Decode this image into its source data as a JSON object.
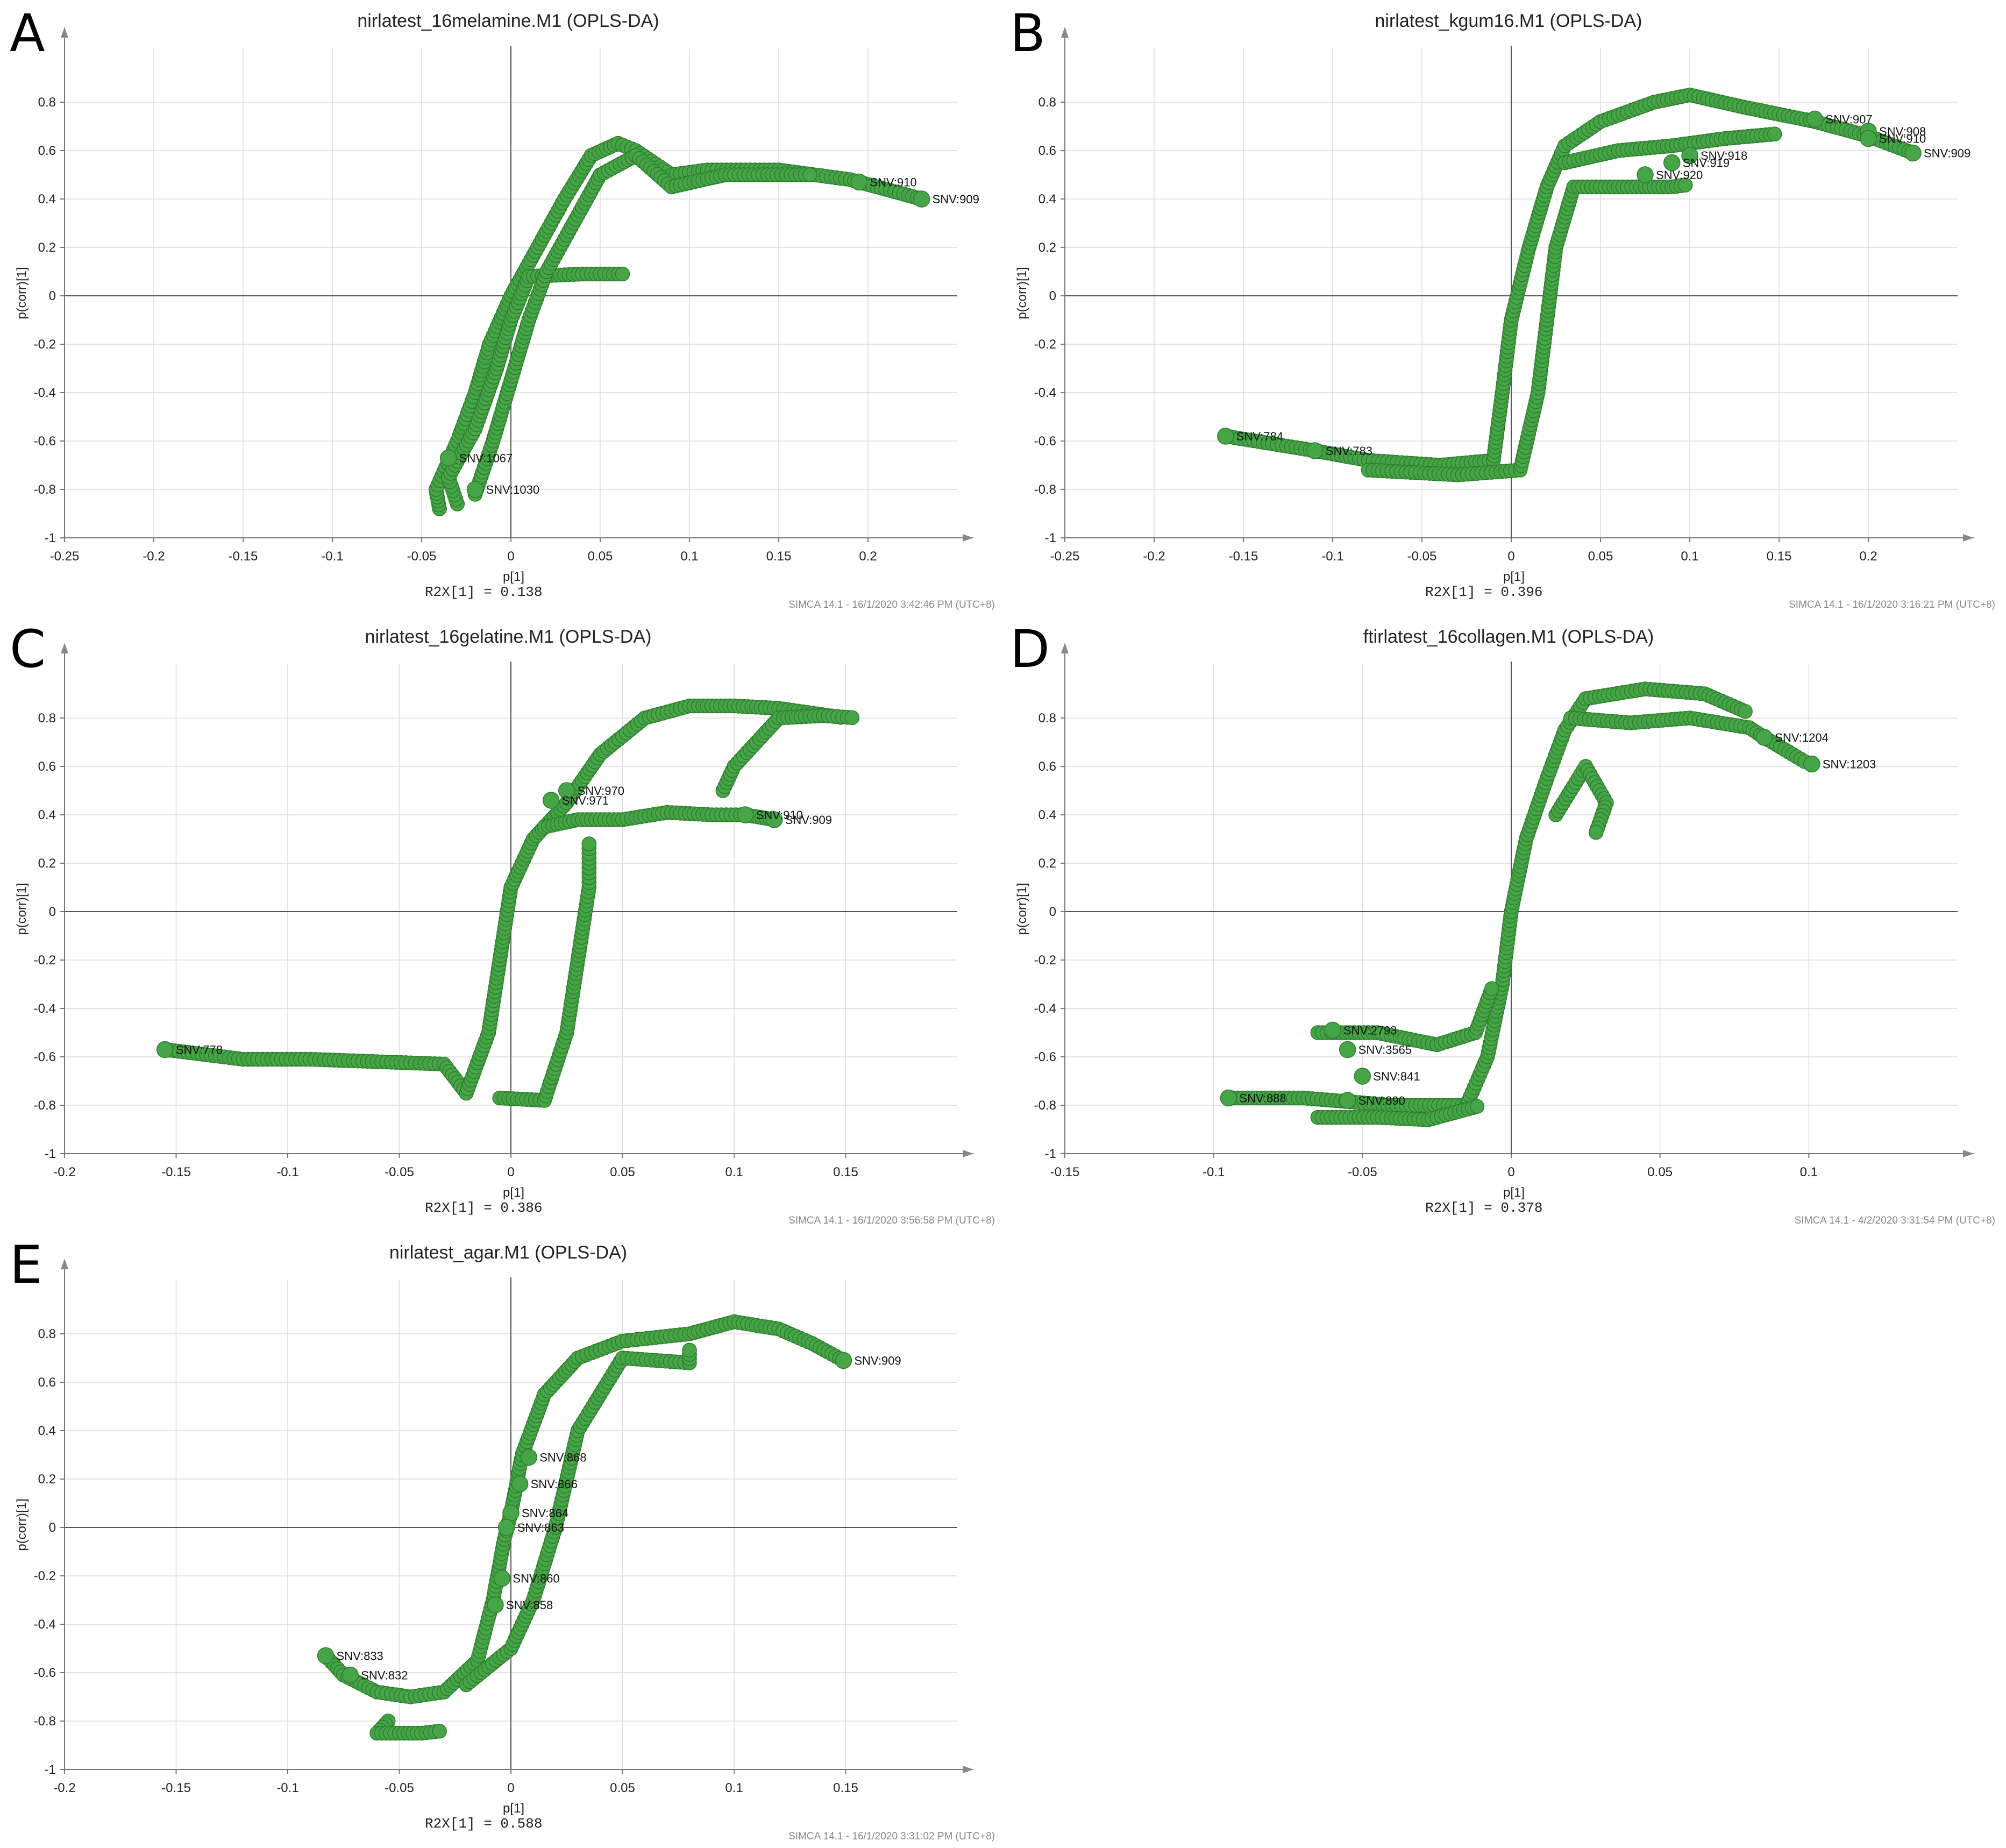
{
  "chart_data": [
    {
      "panel": "A",
      "type": "scatter",
      "title": "nirlatest_16melamine.M1 (OPLS-DA)",
      "xlabel": "p[1]",
      "ylabel": "p(corr)[1]",
      "xlim": [
        -0.25,
        0.25
      ],
      "ylim": [
        -1,
        1
      ],
      "xticks": [
        "-0.25",
        "-0.2",
        "-0.15",
        "-0.1",
        "-0.05",
        "0",
        "0.05",
        "0.1",
        "0.15",
        "0.2"
      ],
      "yticks": [
        "-1",
        "-0.8",
        "-0.6",
        "-0.4",
        "-0.2",
        "0",
        "0.2",
        "0.4",
        "0.6",
        "0.8"
      ],
      "r2x": "R2X[1] = 0.138",
      "footer": "SIMCA 14.1 - 16/1/2020 3:42:46 PM (UTC+8)",
      "curves": [
        [
          [
            -0.04,
            -0.88
          ],
          [
            -0.042,
            -0.8
          ],
          [
            -0.03,
            -0.6
          ],
          [
            -0.02,
            -0.4
          ],
          [
            -0.012,
            -0.2
          ],
          [
            0.0,
            0.0
          ],
          [
            0.015,
            0.2
          ],
          [
            0.03,
            0.4
          ],
          [
            0.045,
            0.58
          ],
          [
            0.06,
            0.63
          ],
          [
            0.07,
            0.6
          ],
          [
            0.09,
            0.5
          ],
          [
            0.11,
            0.52
          ],
          [
            0.15,
            0.52
          ],
          [
            0.19,
            0.48
          ],
          [
            0.23,
            0.4
          ]
        ],
        [
          [
            -0.03,
            -0.86
          ],
          [
            -0.035,
            -0.75
          ],
          [
            -0.02,
            -0.55
          ],
          [
            -0.008,
            -0.3
          ],
          [
            0.0,
            -0.1
          ],
          [
            0.01,
            0.08
          ],
          [
            0.04,
            0.09
          ],
          [
            0.065,
            0.09
          ]
        ],
        [
          [
            -0.02,
            -0.82
          ],
          [
            -0.01,
            -0.6
          ],
          [
            0.0,
            -0.35
          ],
          [
            0.01,
            -0.1
          ],
          [
            0.02,
            0.1
          ],
          [
            0.035,
            0.3
          ],
          [
            0.05,
            0.5
          ],
          [
            0.07,
            0.58
          ],
          [
            0.09,
            0.45
          ],
          [
            0.12,
            0.5
          ],
          [
            0.17,
            0.5
          ]
        ]
      ],
      "points": [
        {
          "label": "SNV:909",
          "x": 0.23,
          "y": 0.4
        },
        {
          "label": "SNV:910",
          "x": 0.195,
          "y": 0.47
        },
        {
          "label": "SNV:1030",
          "x": -0.02,
          "y": -0.8
        },
        {
          "label": "SNV:1067",
          "x": -0.035,
          "y": -0.67
        }
      ]
    },
    {
      "panel": "B",
      "type": "scatter",
      "title": "nirlatest_kgum16.M1 (OPLS-DA)",
      "xlabel": "p[1]",
      "ylabel": "p(corr)[1]",
      "xlim": [
        -0.25,
        0.25
      ],
      "ylim": [
        -1,
        1
      ],
      "xticks": [
        "-0.25",
        "-0.2",
        "-0.15",
        "-0.1",
        "-0.05",
        "0",
        "0.05",
        "0.1",
        "0.15",
        "0.2"
      ],
      "yticks": [
        "-1",
        "-0.8",
        "-0.6",
        "-0.4",
        "-0.2",
        "0",
        "0.2",
        "0.4",
        "0.6",
        "0.8"
      ],
      "r2x": "R2X[1] = 0.396",
      "footer": "SIMCA 14.1 - 16/1/2020 3:16:21 PM (UTC+8)",
      "curves": [
        [
          [
            -0.16,
            -0.58
          ],
          [
            -0.11,
            -0.64
          ],
          [
            -0.08,
            -0.68
          ],
          [
            -0.04,
            -0.7
          ],
          [
            -0.01,
            -0.68
          ],
          [
            -0.005,
            -0.4
          ],
          [
            0.0,
            -0.1
          ],
          [
            0.01,
            0.2
          ],
          [
            0.02,
            0.45
          ],
          [
            0.03,
            0.62
          ],
          [
            0.05,
            0.72
          ],
          [
            0.08,
            0.8
          ],
          [
            0.1,
            0.83
          ],
          [
            0.13,
            0.78
          ],
          [
            0.17,
            0.72
          ],
          [
            0.2,
            0.66
          ],
          [
            0.225,
            0.59
          ]
        ],
        [
          [
            -0.08,
            -0.72
          ],
          [
            -0.03,
            -0.74
          ],
          [
            0.005,
            -0.72
          ],
          [
            0.015,
            -0.4
          ],
          [
            0.02,
            -0.1
          ],
          [
            0.025,
            0.2
          ],
          [
            0.035,
            0.45
          ],
          [
            0.06,
            0.45
          ],
          [
            0.09,
            0.45
          ],
          [
            0.1,
            0.46
          ]
        ],
        [
          [
            0.03,
            0.55
          ],
          [
            0.06,
            0.6
          ],
          [
            0.09,
            0.62
          ],
          [
            0.12,
            0.65
          ],
          [
            0.15,
            0.67
          ]
        ]
      ],
      "points": [
        {
          "label": "SNV:784",
          "x": -0.16,
          "y": -0.58
        },
        {
          "label": "SNV:783",
          "x": -0.11,
          "y": -0.64
        },
        {
          "label": "SNV:907",
          "x": 0.17,
          "y": 0.73
        },
        {
          "label": "SNV:908",
          "x": 0.2,
          "y": 0.68
        },
        {
          "label": "SNV:910",
          "x": 0.2,
          "y": 0.65
        },
        {
          "label": "SNV:909",
          "x": 0.225,
          "y": 0.59
        },
        {
          "label": "SNV:918",
          "x": 0.1,
          "y": 0.58
        },
        {
          "label": "SNV:919",
          "x": 0.09,
          "y": 0.55
        },
        {
          "label": "SNV:920",
          "x": 0.075,
          "y": 0.5
        }
      ]
    },
    {
      "panel": "C",
      "type": "scatter",
      "title": "nirlatest_16gelatine.M1 (OPLS-DA)",
      "xlabel": "p[1]",
      "ylabel": "p(corr)[1]",
      "xlim": [
        -0.2,
        0.2
      ],
      "ylim": [
        -1,
        1
      ],
      "xticks": [
        "-0.2",
        "-0.15",
        "-0.1",
        "-0.05",
        "0",
        "0.05",
        "0.1",
        "0.15"
      ],
      "yticks": [
        "-1",
        "-0.8",
        "-0.6",
        "-0.4",
        "-0.2",
        "0",
        "0.2",
        "0.4",
        "0.6",
        "0.8"
      ],
      "r2x": "R2X[1] = 0.386",
      "footer": "SIMCA 14.1 - 16/1/2020 3:56:58 PM (UTC+8)",
      "curves": [
        [
          [
            -0.155,
            -0.57
          ],
          [
            -0.12,
            -0.61
          ],
          [
            -0.09,
            -0.61
          ],
          [
            -0.06,
            -0.62
          ],
          [
            -0.03,
            -0.63
          ],
          [
            -0.02,
            -0.75
          ],
          [
            -0.01,
            -0.5
          ],
          [
            -0.005,
            -0.2
          ],
          [
            0.0,
            0.1
          ],
          [
            0.01,
            0.3
          ],
          [
            0.025,
            0.45
          ],
          [
            0.04,
            0.65
          ],
          [
            0.06,
            0.8
          ],
          [
            0.08,
            0.85
          ],
          [
            0.1,
            0.85
          ],
          [
            0.12,
            0.84
          ],
          [
            0.15,
            0.8
          ]
        ],
        [
          [
            0.015,
            0.35
          ],
          [
            0.03,
            0.38
          ],
          [
            0.05,
            0.38
          ],
          [
            0.07,
            0.41
          ],
          [
            0.09,
            0.4
          ],
          [
            0.105,
            0.4
          ],
          [
            0.118,
            0.38
          ]
        ],
        [
          [
            0.095,
            0.5
          ],
          [
            0.1,
            0.6
          ],
          [
            0.11,
            0.7
          ],
          [
            0.12,
            0.8
          ],
          [
            0.14,
            0.81
          ],
          [
            0.155,
            0.8
          ]
        ],
        [
          [
            -0.005,
            -0.77
          ],
          [
            0.015,
            -0.78
          ],
          [
            0.025,
            -0.5
          ],
          [
            0.03,
            -0.2
          ],
          [
            0.035,
            0.1
          ],
          [
            0.035,
            0.3
          ]
        ]
      ],
      "points": [
        {
          "label": "SNV:778",
          "x": -0.155,
          "y": -0.57
        },
        {
          "label": "SNV:970",
          "x": 0.025,
          "y": 0.5
        },
        {
          "label": "SNV:971",
          "x": 0.018,
          "y": 0.46
        },
        {
          "label": "SNV:909",
          "x": 0.118,
          "y": 0.38
        },
        {
          "label": "SNV:910",
          "x": 0.105,
          "y": 0.4
        }
      ]
    },
    {
      "panel": "D",
      "type": "scatter",
      "title": "ftirlatest_16collagen.M1 (OPLS-DA)",
      "xlabel": "p[1]",
      "ylabel": "p(corr)[1]",
      "xlim": [
        -0.15,
        0.15
      ],
      "ylim": [
        -1,
        1
      ],
      "xticks": [
        "-0.15",
        "-0.1",
        "-0.05",
        "0",
        "0.05",
        "0.1"
      ],
      "yticks": [
        "-1",
        "-0.8",
        "-0.6",
        "-0.4",
        "-0.2",
        "0",
        "0.2",
        "0.4",
        "0.6",
        "0.8"
      ],
      "r2x": "R2X[1] = 0.378",
      "footer": "SIMCA 14.1 - 4/2/2020 3:31:54 PM (UTC+8)",
      "curves": [
        [
          [
            -0.095,
            -0.77
          ],
          [
            -0.07,
            -0.77
          ],
          [
            -0.04,
            -0.8
          ],
          [
            -0.015,
            -0.8
          ],
          [
            -0.008,
            -0.6
          ],
          [
            -0.003,
            -0.3
          ],
          [
            0.0,
            0.0
          ],
          [
            0.005,
            0.3
          ],
          [
            0.012,
            0.55
          ],
          [
            0.018,
            0.75
          ],
          [
            0.025,
            0.88
          ],
          [
            0.045,
            0.92
          ],
          [
            0.065,
            0.9
          ],
          [
            0.08,
            0.82
          ]
        ],
        [
          [
            -0.065,
            -0.5
          ],
          [
            -0.045,
            -0.5
          ],
          [
            -0.025,
            -0.55
          ],
          [
            -0.012,
            -0.5
          ],
          [
            -0.006,
            -0.3
          ]
        ],
        [
          [
            0.02,
            0.8
          ],
          [
            0.04,
            0.78
          ],
          [
            0.06,
            0.8
          ],
          [
            0.08,
            0.76
          ],
          [
            0.085,
            0.72
          ],
          [
            0.1,
            0.61
          ]
        ],
        [
          [
            0.015,
            0.4
          ],
          [
            0.025,
            0.6
          ],
          [
            0.032,
            0.45
          ],
          [
            0.028,
            0.31
          ]
        ],
        [
          [
            -0.065,
            -0.85
          ],
          [
            -0.045,
            -0.85
          ],
          [
            -0.028,
            -0.86
          ],
          [
            -0.01,
            -0.8
          ]
        ]
      ],
      "points": [
        {
          "label": "SNV:1203",
          "x": 0.101,
          "y": 0.61
        },
        {
          "label": "SNV:1204",
          "x": 0.085,
          "y": 0.72
        },
        {
          "label": "SNV:888",
          "x": -0.095,
          "y": -0.77
        },
        {
          "label": "SNV:2793",
          "x": -0.06,
          "y": -0.49
        },
        {
          "label": "SNV:3565",
          "x": -0.055,
          "y": -0.57
        },
        {
          "label": "SNV:841",
          "x": -0.05,
          "y": -0.68
        },
        {
          "label": "SNV:890",
          "x": -0.055,
          "y": -0.78
        }
      ]
    },
    {
      "panel": "E",
      "type": "scatter",
      "title": "nirlatest_agar.M1 (OPLS-DA)",
      "xlabel": "p[1]",
      "ylabel": "p(corr)[1]",
      "xlim": [
        -0.2,
        0.2
      ],
      "ylim": [
        -1,
        1
      ],
      "xticks": [
        "-0.2",
        "-0.15",
        "-0.1",
        "-0.05",
        "0",
        "0.05",
        "0.1",
        "0.15"
      ],
      "yticks": [
        "-1",
        "-0.8",
        "-0.6",
        "-0.4",
        "-0.2",
        "0",
        "0.2",
        "0.4",
        "0.6",
        "0.8"
      ],
      "r2x": "R2X[1] = 0.588",
      "footer": "SIMCA 14.1 - 16/1/2020 3:31:02 PM (UTC+8)",
      "curves": [
        [
          [
            -0.083,
            -0.53
          ],
          [
            -0.075,
            -0.61
          ],
          [
            -0.06,
            -0.68
          ],
          [
            -0.045,
            -0.7
          ],
          [
            -0.03,
            -0.68
          ],
          [
            -0.015,
            -0.55
          ],
          [
            -0.008,
            -0.3
          ],
          [
            -0.003,
            -0.05
          ],
          [
            0.0,
            0.06
          ],
          [
            0.005,
            0.3
          ],
          [
            0.015,
            0.55
          ],
          [
            0.03,
            0.7
          ],
          [
            0.05,
            0.77
          ],
          [
            0.08,
            0.8
          ],
          [
            0.1,
            0.85
          ],
          [
            0.12,
            0.82
          ],
          [
            0.135,
            0.76
          ],
          [
            0.149,
            0.69
          ]
        ],
        [
          [
            -0.055,
            -0.8
          ],
          [
            -0.06,
            -0.85
          ],
          [
            -0.04,
            -0.85
          ],
          [
            -0.03,
            -0.84
          ]
        ],
        [
          [
            -0.02,
            -0.65
          ],
          [
            0.0,
            -0.5
          ],
          [
            0.01,
            -0.3
          ],
          [
            0.02,
            0.0
          ],
          [
            0.03,
            0.4
          ],
          [
            0.05,
            0.7
          ],
          [
            0.08,
            0.68
          ],
          [
            0.08,
            0.75
          ]
        ]
      ],
      "points": [
        {
          "label": "SNV:909",
          "x": 0.149,
          "y": 0.69
        },
        {
          "label": "SNV:833",
          "x": -0.083,
          "y": -0.53
        },
        {
          "label": "SNV:832",
          "x": -0.072,
          "y": -0.61
        },
        {
          "label": "SNV:864",
          "x": 0.0,
          "y": 0.06
        },
        {
          "label": "SNV:863",
          "x": -0.002,
          "y": 0.0
        },
        {
          "label": "SNV:866",
          "x": 0.004,
          "y": 0.18
        },
        {
          "label": "SNV:868",
          "x": 0.008,
          "y": 0.29
        },
        {
          "label": "SNV:860",
          "x": -0.004,
          "y": -0.21
        },
        {
          "label": "SNV:858",
          "x": -0.007,
          "y": -0.32
        }
      ]
    }
  ]
}
